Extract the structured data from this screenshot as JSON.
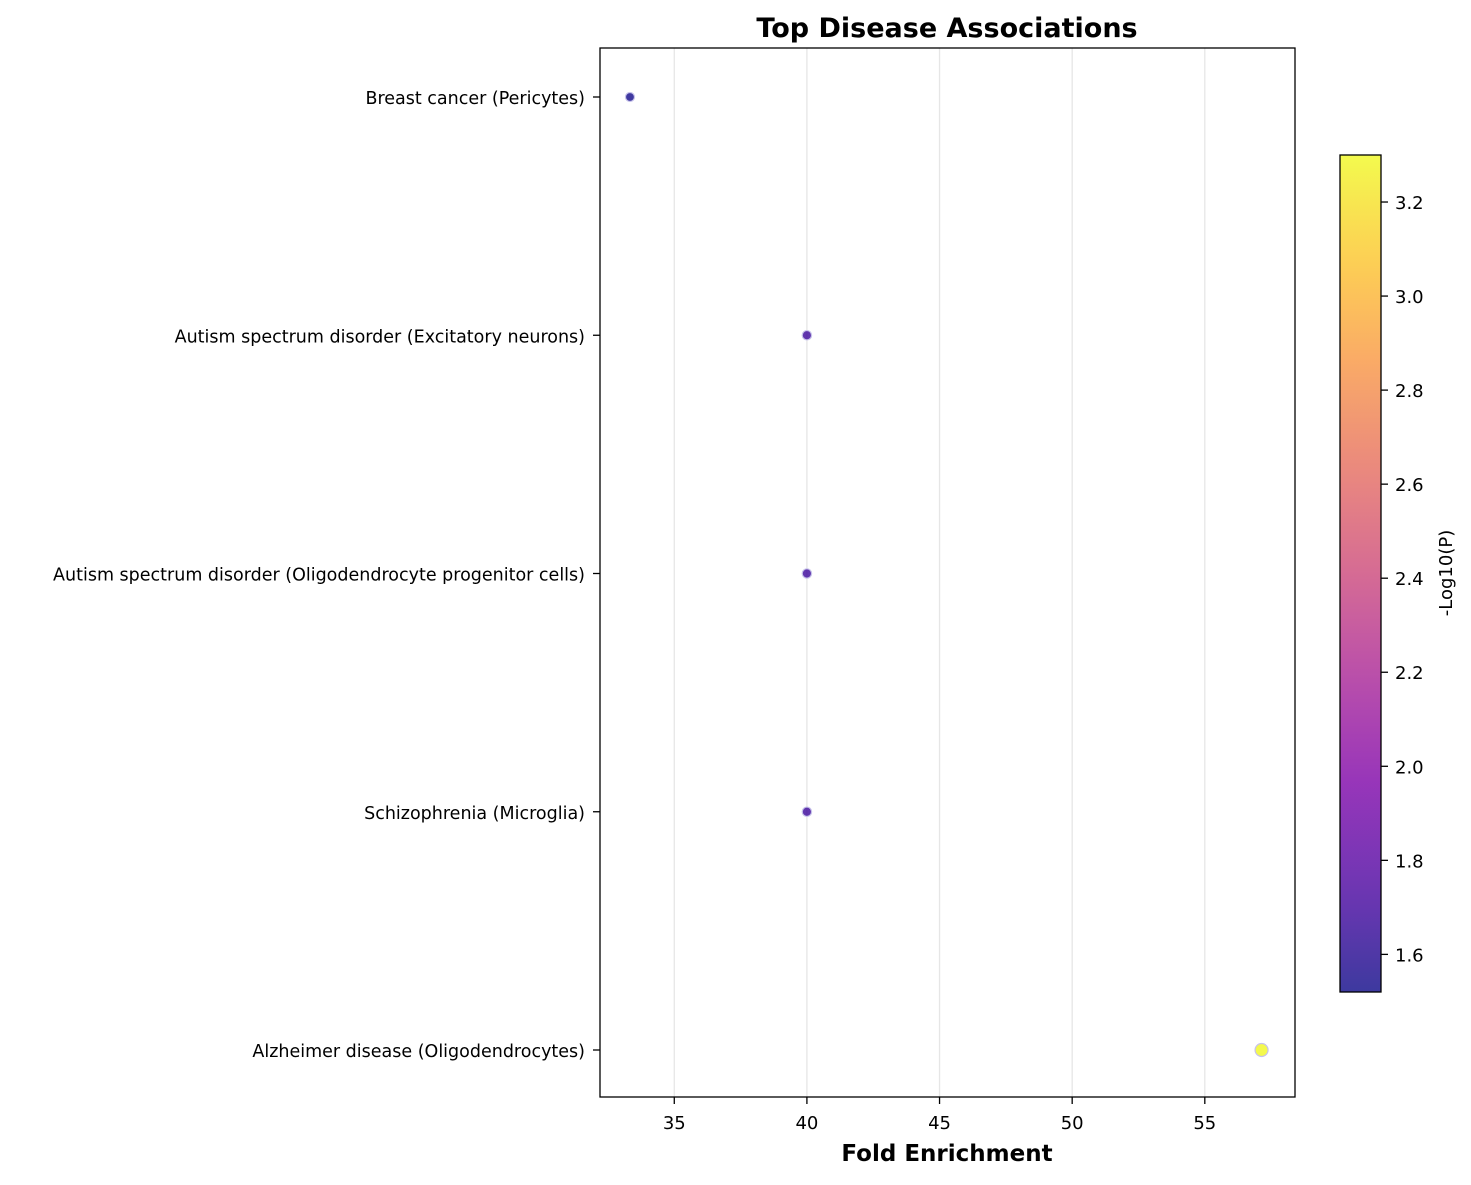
{
  "chart_data": {
    "type": "scatter",
    "title": "Top Disease Associations",
    "xlabel": "Fold Enrichment",
    "ylabel": "",
    "xlim": [
      32.2,
      58.4
    ],
    "x_ticks": [
      35,
      40,
      45,
      50,
      55
    ],
    "x_tick_labels": [
      "35",
      "40",
      "45",
      "50",
      "55"
    ],
    "grid": "vertical",
    "categories": [
      "Breast cancer (Pericytes)",
      "Autism spectrum disorder (Excitatory neurons)",
      "Autism spectrum disorder (Oligodendrocyte progenitor cells)",
      "Schizophrenia (Microglia)",
      "Alzheimer disease (Oligodendrocytes)"
    ],
    "points": [
      {
        "category": "Breast cancer (Pericytes)",
        "x": 33.33,
        "neg_log10_p": 1.53
      },
      {
        "category": "Autism spectrum disorder (Excitatory neurons)",
        "x": 40.0,
        "neg_log10_p": 1.68
      },
      {
        "category": "Autism spectrum disorder (Oligodendrocyte progenitor cells)",
        "x": 40.0,
        "neg_log10_p": 1.68
      },
      {
        "category": "Schizophrenia (Microglia)",
        "x": 40.0,
        "neg_log10_p": 1.68
      },
      {
        "category": "Alzheimer disease (Oligodendrocytes)",
        "x": 57.14,
        "neg_log10_p": 3.29
      }
    ],
    "colorbar": {
      "label": "-Log10(P)",
      "colormap": "plasma",
      "range": [
        1.52,
        3.3
      ],
      "ticks": [
        1.6,
        1.8,
        2.0,
        2.2,
        2.4,
        2.6,
        2.8,
        3.0,
        3.2
      ],
      "tick_labels": [
        "1.6",
        "1.8",
        "2.0",
        "2.2",
        "2.4",
        "2.6",
        "2.8",
        "3.0",
        "3.2"
      ]
    },
    "colors": {
      "grid": "#e6e6e6",
      "axes": "#000000",
      "marker_edge": "#c7c3ea"
    }
  }
}
